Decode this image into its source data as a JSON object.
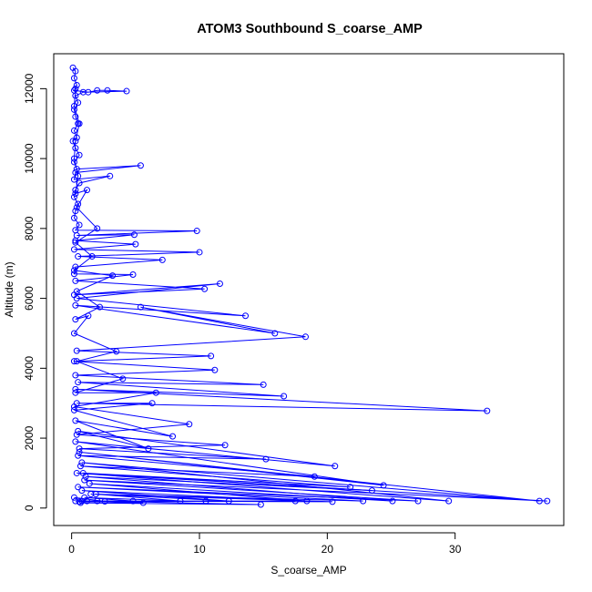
{
  "chart_data": {
    "type": "scatter",
    "title": "ATOM3 Southbound S_coarse_AMP",
    "xlabel": "S_coarse_AMP",
    "ylabel": "Altitude (m)",
    "xlim": [
      -1.4,
      38.5
    ],
    "ylim": [
      -500,
      13000
    ],
    "xticks": [
      0,
      10,
      20,
      30
    ],
    "yticks": [
      0,
      2000,
      4000,
      6000,
      8000,
      10000,
      12000
    ],
    "grid": false,
    "legend": "none",
    "color": "#0000ff",
    "marker": "open-circle",
    "connected": true,
    "series": [
      {
        "values": [
          [
            0.1,
            12600
          ],
          [
            0.3,
            12500
          ],
          [
            0.2,
            12300
          ],
          [
            0.4,
            12100
          ],
          [
            0.2,
            11950
          ],
          [
            1.3,
            11900
          ],
          [
            2.0,
            11950
          ],
          [
            2.8,
            11950
          ],
          [
            4.3,
            11930
          ],
          [
            0.9,
            11900
          ],
          [
            0.3,
            11800
          ],
          [
            0.5,
            11600
          ],
          [
            0.2,
            11400
          ],
          [
            0.3,
            11200
          ],
          [
            0.5,
            11000
          ],
          [
            0.2,
            10800
          ],
          [
            0.4,
            10600
          ],
          [
            0.1,
            10500
          ],
          [
            0.3,
            10300
          ],
          [
            0.6,
            10100
          ],
          [
            0.2,
            9900
          ],
          [
            0.4,
            9700
          ],
          [
            5.4,
            9800
          ],
          [
            0.3,
            9600
          ],
          [
            0.2,
            9400
          ],
          [
            3.0,
            9500
          ],
          [
            0.6,
            9300
          ],
          [
            0.3,
            9100
          ],
          [
            0.2,
            8900
          ],
          [
            0.5,
            8700
          ],
          [
            0.3,
            8500
          ],
          [
            0.2,
            8300
          ],
          [
            0.6,
            8100
          ],
          [
            0.3,
            7950
          ],
          [
            9.8,
            7930
          ],
          [
            0.4,
            7800
          ],
          [
            4.9,
            7820
          ],
          [
            0.3,
            7650
          ],
          [
            5.0,
            7550
          ],
          [
            0.2,
            7400
          ],
          [
            10.0,
            7320
          ],
          [
            0.5,
            7200
          ],
          [
            7.1,
            7100
          ],
          [
            0.3,
            6900
          ],
          [
            0.2,
            6700
          ],
          [
            4.8,
            6680
          ],
          [
            0.3,
            6500
          ],
          [
            10.4,
            6270
          ],
          [
            0.2,
            6100
          ],
          [
            11.6,
            6420
          ],
          [
            0.4,
            6000
          ],
          [
            13.6,
            5500
          ],
          [
            0.3,
            5800
          ],
          [
            15.9,
            5000
          ],
          [
            5.4,
            5750
          ],
          [
            18.3,
            4900
          ],
          [
            0.4,
            4500
          ],
          [
            10.9,
            4350
          ],
          [
            0.2,
            4200
          ],
          [
            11.2,
            3950
          ],
          [
            0.3,
            3800
          ],
          [
            15.0,
            3530
          ],
          [
            0.5,
            3600
          ],
          [
            16.6,
            3200
          ],
          [
            0.3,
            3400
          ],
          [
            32.5,
            2780
          ],
          [
            0.4,
            3000
          ],
          [
            6.3,
            3000
          ],
          [
            0.2,
            2800
          ],
          [
            7.9,
            2050
          ],
          [
            0.3,
            2500
          ],
          [
            6.0,
            1700
          ],
          [
            0.5,
            2200
          ],
          [
            20.6,
            1200
          ],
          [
            0.3,
            1900
          ],
          [
            24.4,
            650
          ],
          [
            0.6,
            1600
          ],
          [
            36.6,
            200
          ],
          [
            0.8,
            1300
          ],
          [
            29.5,
            200
          ],
          [
            0.4,
            1000
          ],
          [
            37.2,
            200
          ],
          [
            1.0,
            800
          ],
          [
            27.1,
            200
          ],
          [
            0.5,
            600
          ],
          [
            22.8,
            200
          ],
          [
            1.5,
            400
          ],
          [
            20.4,
            180
          ],
          [
            0.8,
            200
          ],
          [
            17.5,
            200
          ],
          [
            2.0,
            200
          ],
          [
            14.8,
            100
          ],
          [
            0.7,
            150
          ],
          [
            5.6,
            150
          ],
          [
            1.2,
            200
          ],
          [
            10.5,
            200
          ],
          [
            0.6,
            180
          ],
          [
            2.6,
            190
          ],
          [
            0.2,
            300
          ]
        ]
      },
      {
        "values": [
          [
            0.3,
            12000
          ],
          [
            0.2,
            11500
          ],
          [
            0.6,
            11000
          ],
          [
            0.3,
            10500
          ],
          [
            0.2,
            10000
          ],
          [
            0.5,
            9500
          ],
          [
            0.3,
            9000
          ],
          [
            1.2,
            9100
          ],
          [
            0.4,
            8600
          ],
          [
            2.0,
            8000
          ],
          [
            0.3,
            7600
          ],
          [
            1.6,
            7200
          ],
          [
            0.2,
            6800
          ],
          [
            3.2,
            6650
          ],
          [
            0.4,
            6200
          ],
          [
            2.2,
            5750
          ],
          [
            0.3,
            5400
          ],
          [
            1.3,
            5500
          ],
          [
            0.2,
            5000
          ],
          [
            3.5,
            4480
          ],
          [
            0.4,
            4200
          ],
          [
            4.0,
            3700
          ],
          [
            0.3,
            3300
          ],
          [
            6.6,
            3300
          ],
          [
            0.2,
            2900
          ],
          [
            9.2,
            2400
          ],
          [
            0.4,
            2100
          ],
          [
            12.0,
            1800
          ],
          [
            0.6,
            1700
          ],
          [
            15.2,
            1400
          ],
          [
            0.5,
            1500
          ],
          [
            19.0,
            900
          ],
          [
            0.7,
            1200
          ],
          [
            21.8,
            600
          ],
          [
            0.9,
            1000
          ],
          [
            23.5,
            500
          ],
          [
            1.1,
            900
          ],
          [
            25.1,
            200
          ],
          [
            1.4,
            700
          ],
          [
            18.4,
            200
          ],
          [
            0.8,
            500
          ],
          [
            12.3,
            200
          ],
          [
            1.9,
            400
          ],
          [
            8.5,
            200
          ],
          [
            1.0,
            300
          ],
          [
            4.8,
            200
          ],
          [
            0.3,
            200
          ]
        ]
      }
    ]
  }
}
